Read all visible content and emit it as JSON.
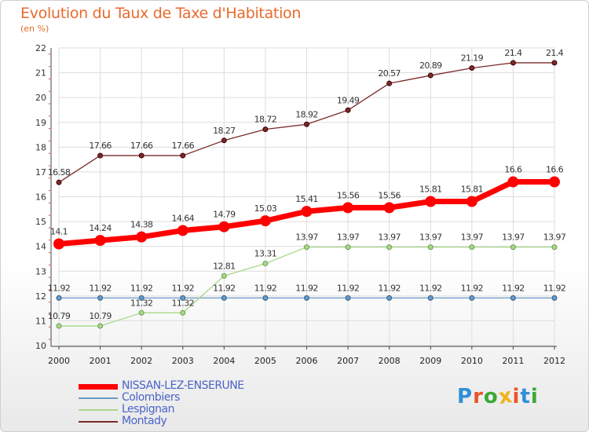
{
  "header": {
    "title": "Evolution du Taux de Taxe d'Habitation",
    "subtitle": "(en %)"
  },
  "logo": {
    "text": "Proxiti",
    "colors": [
      "#2f8fd8",
      "#e8552a",
      "#3aa935",
      "#f2b21b",
      "#e8552a",
      "#2f8fd8",
      "#3aa935"
    ]
  },
  "chart_data": {
    "type": "line",
    "title": "Evolution du Taux de Taxe d'Habitation",
    "subtitle": "(en %)",
    "xlabel": "",
    "ylabel": "",
    "x": [
      "2000",
      "2001",
      "2002",
      "2003",
      "2004",
      "2005",
      "2006",
      "2007",
      "2008",
      "2009",
      "2010",
      "2011",
      "2012"
    ],
    "ylim": [
      10,
      22
    ],
    "yticks": [
      "10",
      "11",
      "12",
      "13",
      "14",
      "15",
      "16",
      "17",
      "18",
      "19",
      "20",
      "21",
      "22"
    ],
    "grid": true,
    "legend_position": "bottom-left",
    "series": [
      {
        "name": "NISSAN-LEZ-ENSERUNE",
        "color": "#ff0000",
        "values": [
          14.1,
          14.24,
          14.38,
          14.64,
          14.79,
          15.03,
          15.41,
          15.56,
          15.56,
          15.81,
          15.81,
          16.6,
          16.6
        ],
        "labels": [
          "14.1",
          "14.24",
          "14.38",
          "14.64",
          "14.79",
          "15.03",
          "15.41",
          "15.56",
          "15.56",
          "15.81",
          "15.81",
          "16.6",
          "16.6"
        ],
        "emphasis": true
      },
      {
        "name": "Colombiers",
        "color": "#6a9ac8",
        "values": [
          11.92,
          11.92,
          11.92,
          11.92,
          11.92,
          11.92,
          11.92,
          11.92,
          11.92,
          11.92,
          11.92,
          11.92,
          11.92
        ],
        "labels": [
          "11.92",
          "11.92",
          "11.92",
          "11.92",
          "11.92",
          "11.92",
          "11.92",
          "11.92",
          "11.92",
          "11.92",
          "11.92",
          "11.92",
          "11.92"
        ],
        "emphasis": false
      },
      {
        "name": "Lespignan",
        "color": "#a8d88a",
        "values": [
          10.79,
          10.79,
          11.32,
          11.32,
          12.81,
          13.31,
          13.97,
          13.97,
          13.97,
          13.97,
          13.97,
          13.97,
          13.97
        ],
        "labels": [
          "10.79",
          "10.79",
          "11.32",
          "11.32",
          "12.81",
          "13.31",
          "13.97",
          "13.97",
          "13.97",
          "13.97",
          "13.97",
          "13.97",
          "13.97"
        ],
        "emphasis": false
      },
      {
        "name": "Montady",
        "color": "#7a2a2a",
        "values": [
          16.58,
          17.66,
          17.66,
          17.66,
          18.27,
          18.72,
          18.92,
          19.49,
          20.57,
          20.89,
          21.19,
          21.4,
          21.4
        ],
        "labels": [
          "16.58",
          "17.66",
          "17.66",
          "17.66",
          "18.27",
          "18.72",
          "18.92",
          "19.49",
          "20.57",
          "20.89",
          "21.19",
          "21.4",
          "21.4"
        ],
        "emphasis": false
      }
    ]
  }
}
